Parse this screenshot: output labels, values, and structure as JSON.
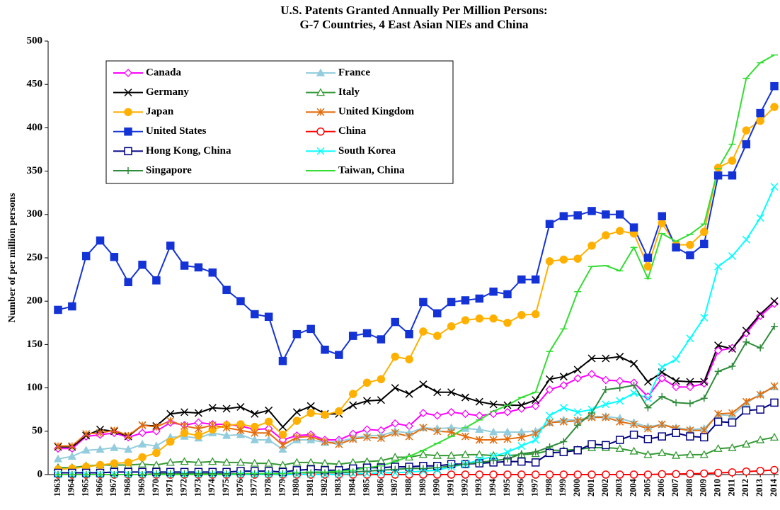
{
  "chart_data": {
    "type": "line",
    "title": [
      "U.S. Patents Granted Annually Per Million Persons:",
      "G-7 Countries, 4 East Asian NIEs and China"
    ],
    "y_label": "Number of per million persons",
    "categories": [
      "1963",
      "1964",
      "1965",
      "1966",
      "1967",
      "1968",
      "1969",
      "1970",
      "1971",
      "1972",
      "1973",
      "1974",
      "1975",
      "1976",
      "1977",
      "1978",
      "1979",
      "1980",
      "1981",
      "1982",
      "1983",
      "1984",
      "1985",
      "1986",
      "1987",
      "1988",
      "1989",
      "1990",
      "1991",
      "1992",
      "1993",
      "1994",
      "1995",
      "1996",
      "1997",
      "1998",
      "1999",
      "2000",
      "2001",
      "2002",
      "2003",
      "2004",
      "2005",
      "2006",
      "2007",
      "2008",
      "2009",
      "2010",
      "2011",
      "2012",
      "2013",
      "2014"
    ],
    "ylim": [
      0,
      500
    ],
    "yticks": [
      0,
      50,
      100,
      150,
      200,
      250,
      300,
      350,
      400,
      450,
      500
    ],
    "series": [
      {
        "name": "Canada",
        "color": "#ff00ff",
        "marker": "diamond-open",
        "values": [
          30,
          30,
          44,
          46,
          48,
          43,
          48,
          50,
          60,
          57,
          60,
          58,
          58,
          56,
          52,
          53,
          40,
          45,
          46,
          40,
          40,
          47,
          52,
          51,
          59,
          56,
          71,
          68,
          72,
          70,
          68,
          70,
          72,
          76,
          79,
          98,
          103,
          111,
          116,
          109,
          108,
          106,
          90,
          111,
          101,
          101,
          105,
          143,
          146,
          163,
          183,
          197
        ]
      },
      {
        "name": "France",
        "color": "#93cddd",
        "marker": "triangle",
        "values": [
          18,
          21,
          28,
          29,
          31,
          29,
          35,
          33,
          43,
          44,
          42,
          48,
          45,
          46,
          40,
          40,
          29,
          40,
          40,
          37,
          38,
          42,
          45,
          45,
          50,
          48,
          54,
          53,
          54,
          53,
          52,
          49,
          49,
          49,
          50,
          60,
          63,
          63,
          67,
          67,
          65,
          60,
          55,
          58,
          54,
          52,
          53,
          69,
          68,
          82,
          93,
          101
        ]
      },
      {
        "name": "Germany",
        "color": "#000000",
        "marker": "x",
        "values": [
          32,
          32,
          45,
          52,
          50,
          44,
          57,
          56,
          70,
          72,
          71,
          77,
          76,
          78,
          70,
          74,
          55,
          72,
          79,
          70,
          70,
          80,
          85,
          86,
          100,
          93,
          104,
          95,
          95,
          89,
          84,
          81,
          80,
          80,
          86,
          110,
          113,
          121,
          134,
          134,
          136,
          128,
          107,
          118,
          108,
          107,
          107,
          149,
          145,
          166,
          185,
          200
        ]
      },
      {
        "name": "Italy",
        "color": "#339933",
        "marker": "triangle-open",
        "values": [
          8,
          8,
          10,
          11,
          11,
          11,
          12,
          11,
          14,
          15,
          14,
          15,
          14,
          14,
          13,
          13,
          11,
          14,
          14,
          13,
          12,
          14,
          15,
          16,
          20,
          20,
          23,
          22,
          22,
          23,
          23,
          22,
          22,
          23,
          24,
          28,
          28,
          29,
          31,
          31,
          30,
          27,
          23,
          25,
          22,
          23,
          23,
          30,
          31,
          35,
          40,
          43
        ]
      },
      {
        "name": "Japan",
        "color": "#ffb000",
        "marker": "circle",
        "values": [
          6,
          7,
          9,
          11,
          13,
          14,
          20,
          25,
          38,
          48,
          45,
          52,
          57,
          58,
          55,
          61,
          46,
          62,
          71,
          69,
          73,
          93,
          106,
          110,
          136,
          133,
          165,
          160,
          171,
          178,
          180,
          180,
          175,
          184,
          185,
          246,
          248,
          249,
          264,
          276,
          281,
          278,
          240,
          290,
          265,
          265,
          280,
          354,
          362,
          397,
          408,
          424
        ]
      },
      {
        "name": "United Kingdom",
        "color": "#e46c0a",
        "marker": "asterisk",
        "values": [
          33,
          33,
          47,
          48,
          51,
          45,
          57,
          55,
          62,
          56,
          53,
          57,
          54,
          51,
          48,
          48,
          34,
          43,
          44,
          38,
          35,
          41,
          43,
          42,
          48,
          44,
          54,
          50,
          49,
          44,
          40,
          40,
          41,
          43,
          47,
          60,
          61,
          62,
          66,
          66,
          61,
          58,
          53,
          58,
          53,
          51,
          51,
          70,
          71,
          84,
          92,
          102
        ]
      },
      {
        "name": "United States",
        "color": "#1433d6",
        "marker": "square",
        "values": [
          190,
          194,
          252,
          270,
          251,
          222,
          242,
          224,
          264,
          241,
          239,
          233,
          213,
          200,
          185,
          182,
          131,
          162,
          168,
          144,
          138,
          160,
          163,
          156,
          176,
          162,
          199,
          186,
          199,
          201,
          203,
          211,
          208,
          225,
          225,
          289,
          298,
          299,
          304,
          300,
          300,
          285,
          250,
          298,
          262,
          253,
          266,
          345,
          345,
          381,
          417,
          448
        ]
      },
      {
        "name": "China",
        "color": "#ff0000",
        "marker": "circle-open",
        "values": [
          0,
          0,
          0,
          0,
          0,
          0,
          0,
          0,
          0,
          0,
          0,
          0,
          0,
          0,
          0,
          0,
          0,
          0,
          0,
          0,
          0,
          0,
          0,
          0,
          0,
          0,
          0,
          0,
          0,
          0,
          0,
          0,
          0,
          0,
          0,
          0,
          0,
          0,
          0,
          0,
          0,
          0,
          0,
          0.5,
          0.6,
          0.9,
          1.2,
          2,
          2.6,
          3.5,
          4.3,
          5.3
        ]
      },
      {
        "name": "Hong Kong, China",
        "color": "#000080",
        "marker": "square-open",
        "values": [
          2,
          2,
          2,
          2,
          3,
          3,
          3,
          3,
          3,
          3,
          3,
          3,
          3,
          4,
          4,
          4,
          3,
          5,
          6,
          5,
          5,
          7,
          8,
          8,
          9,
          9,
          10,
          10,
          12,
          12,
          13,
          14,
          15,
          15,
          14,
          25,
          26,
          28,
          35,
          34,
          40,
          46,
          41,
          44,
          48,
          44,
          43,
          61,
          60,
          74,
          75,
          83
        ]
      },
      {
        "name": "South Korea",
        "color": "#00ffff",
        "marker": "x",
        "values": [
          0,
          0,
          0,
          0,
          0,
          0,
          0,
          0,
          0,
          0,
          0,
          0,
          0,
          0,
          0,
          0,
          0,
          0,
          0,
          0,
          0,
          1,
          1,
          2,
          2,
          3,
          4,
          5,
          9,
          12,
          17,
          21,
          26,
          33,
          40,
          68,
          77,
          72,
          75,
          81,
          85,
          94,
          88,
          124,
          133,
          157,
          181,
          240,
          252,
          271,
          296,
          332
        ]
      },
      {
        "name": "Singapore",
        "color": "#2e8b3a",
        "marker": "plus",
        "values": [
          0,
          0,
          0,
          0,
          0,
          0,
          0,
          1,
          1,
          1,
          1,
          1,
          1,
          1,
          1,
          1,
          1,
          2,
          2,
          2,
          2,
          3,
          4,
          5,
          6,
          7,
          7,
          8,
          10,
          12,
          14,
          16,
          18,
          24,
          26,
          32,
          38,
          57,
          71,
          98,
          100,
          103,
          77,
          90,
          83,
          82,
          88,
          119,
          125,
          153,
          146,
          171
        ]
      },
      {
        "name": "Taiwan, China",
        "color": "#33dd33",
        "marker": "dash",
        "values": [
          0,
          0,
          0,
          0,
          0,
          0,
          0,
          0,
          0,
          0,
          0,
          0,
          0,
          1,
          1,
          1,
          1,
          2,
          3,
          3,
          4,
          5,
          8,
          10,
          15,
          21,
          28,
          36,
          44,
          54,
          63,
          73,
          80,
          89,
          95,
          142,
          168,
          211,
          240,
          241,
          235,
          262,
          226,
          278,
          269,
          277,
          289,
          353,
          381,
          457,
          475,
          484
        ]
      }
    ]
  }
}
